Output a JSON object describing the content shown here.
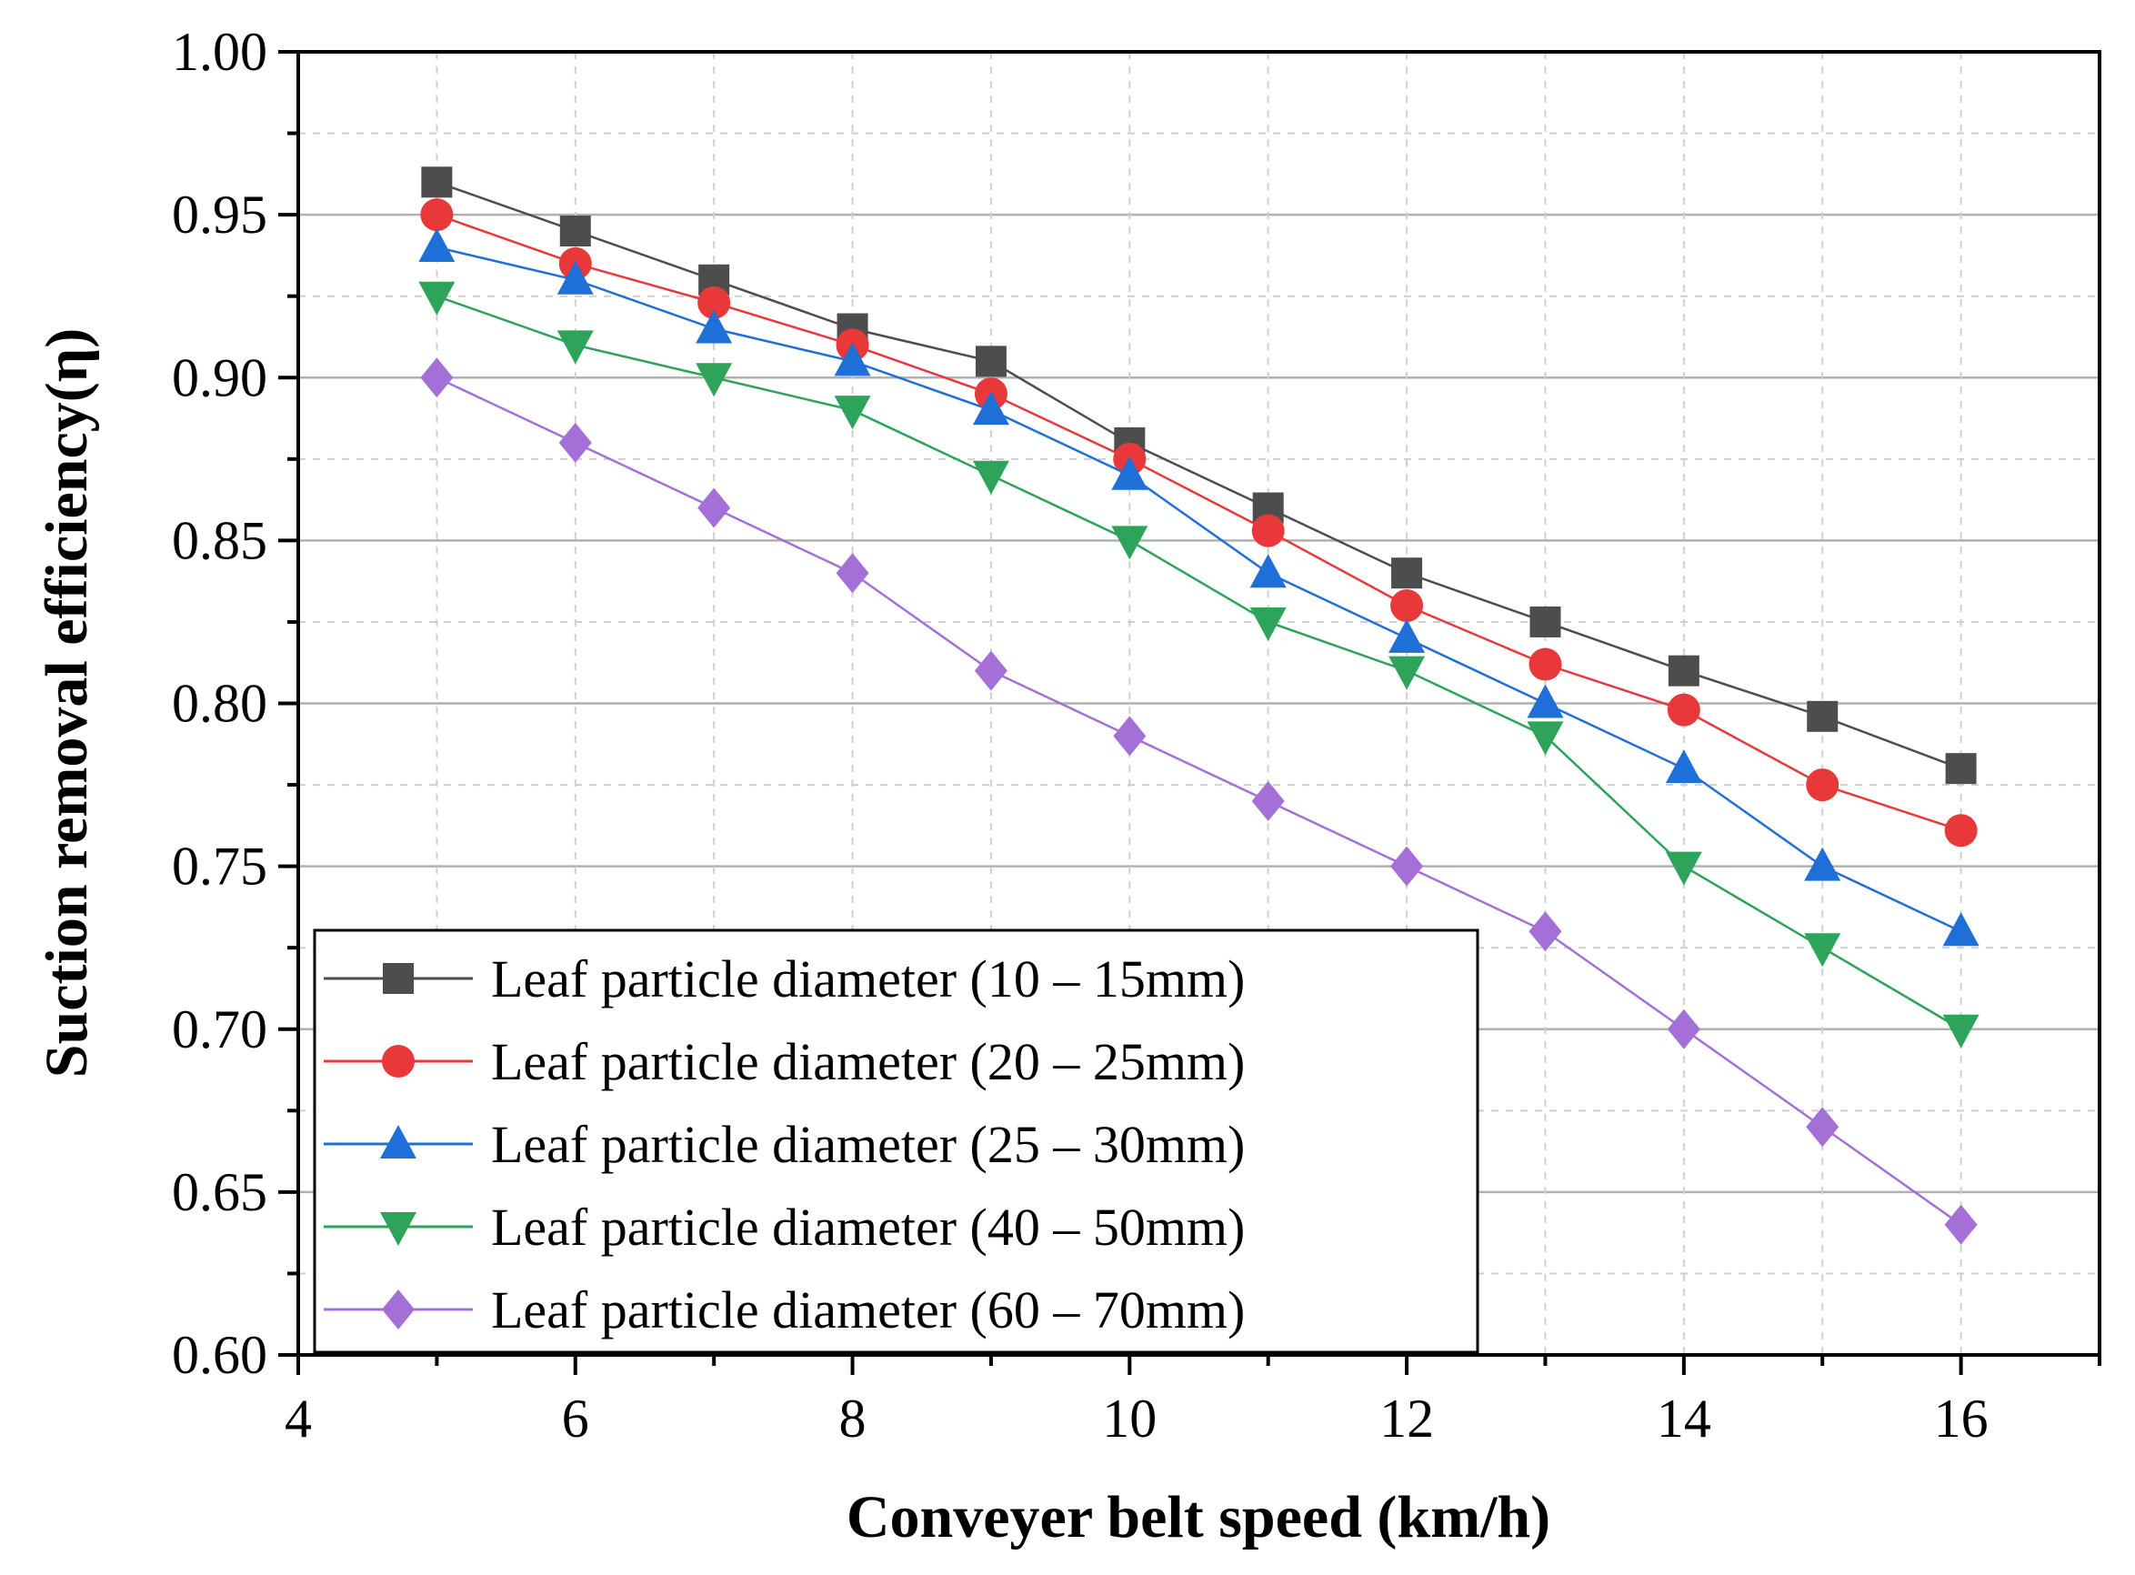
{
  "chart_data": {
    "type": "line",
    "title": "",
    "xlabel": "Conveyer belt speed (km/h)",
    "ylabel": "Suction removal efficiency(η)",
    "xlim": [
      4,
      17
    ],
    "ylim": [
      0.6,
      1.0
    ],
    "xticks": [
      "4",
      "6",
      "8",
      "10",
      "12",
      "14",
      "16"
    ],
    "yticks": [
      "0.60",
      "0.65",
      "0.70",
      "0.75",
      "0.80",
      "0.85",
      "0.90",
      "0.95",
      "1.00"
    ],
    "grid": true,
    "legend_position": "bottom-left",
    "x": [
      5,
      6,
      7,
      8,
      9,
      10,
      11,
      12,
      13,
      14,
      15,
      16
    ],
    "series": [
      {
        "name": "Leaf particle diameter (10 – 15mm)",
        "color": "#4d4d4d",
        "marker": "square",
        "values": [
          0.96,
          0.945,
          0.93,
          0.915,
          0.905,
          0.88,
          0.86,
          0.84,
          0.825,
          0.81,
          0.796,
          0.78
        ]
      },
      {
        "name": "Leaf particle diameter (20 – 25mm)",
        "color": "#e8383a",
        "marker": "circle",
        "values": [
          0.95,
          0.935,
          0.923,
          0.91,
          0.895,
          0.875,
          0.853,
          0.83,
          0.812,
          0.798,
          0.775,
          0.761
        ]
      },
      {
        "name": "Leaf particle diameter (25 – 30mm)",
        "color": "#1f6fd8",
        "marker": "triangle-up",
        "values": [
          0.94,
          0.93,
          0.915,
          0.905,
          0.89,
          0.87,
          0.84,
          0.82,
          0.8,
          0.78,
          0.75,
          0.73
        ]
      },
      {
        "name": "Leaf particle diameter (40 – 50mm)",
        "color": "#2ea35a",
        "marker": "triangle-down",
        "values": [
          0.925,
          0.91,
          0.9,
          0.89,
          0.87,
          0.85,
          0.825,
          0.81,
          0.79,
          0.75,
          0.725,
          0.7
        ]
      },
      {
        "name": "Leaf particle diameter (60 – 70mm)",
        "color": "#a56fd8",
        "marker": "diamond",
        "values": [
          0.9,
          0.88,
          0.86,
          0.84,
          0.81,
          0.79,
          0.77,
          0.75,
          0.73,
          0.7,
          0.67,
          0.64
        ]
      }
    ]
  }
}
